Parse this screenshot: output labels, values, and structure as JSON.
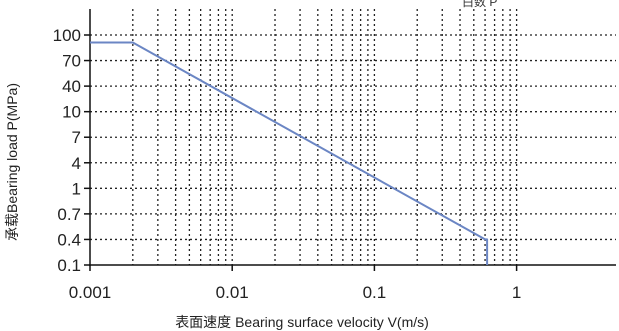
{
  "chart_data": {
    "type": "line",
    "title": "",
    "top_caption": "白数 P",
    "xlabel": "表面速度 Bearing surface velocity V(m/s)",
    "ylabel": "承载Bearing load P(MPa)",
    "x_scale": "log",
    "xlim": [
      0.001,
      5
    ],
    "x_ticks": [
      0.001,
      0.01,
      0.1,
      1
    ],
    "x_tick_labels": [
      "0.001",
      "0.01",
      "0.1",
      "1"
    ],
    "y_scale": "categorical",
    "y_categories": [
      "0.1",
      "0.4",
      "0.7",
      "1",
      "4",
      "7",
      "10",
      "40",
      "70",
      "100"
    ],
    "grid": true,
    "legend": "none",
    "colors": {
      "line": "#6b86c4",
      "axis": "#111111",
      "grid": "#222222"
    },
    "series": [
      {
        "x": [
          0.001,
          0.002,
          0.6,
          0.6,
          0.62,
          0.62
        ],
        "y": [
          90,
          90,
          0.4,
          0.4,
          0.4,
          0.1
        ]
      }
    ]
  }
}
